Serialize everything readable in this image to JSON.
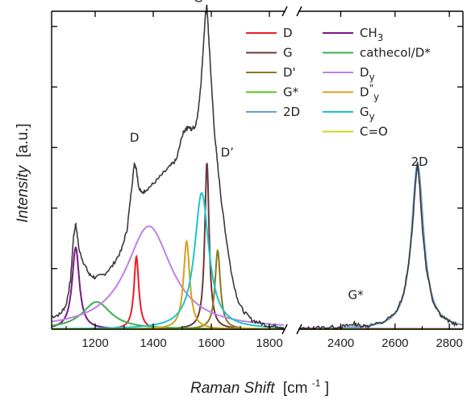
{
  "chart_data": {
    "type": "line",
    "xlabel": {
      "main": "Raman Shift",
      "unit_open": "[cm",
      "unit_sup": "-1",
      "unit_close": "]"
    },
    "ylabel": {
      "main": "Intensity",
      "unit": "[a.u.]"
    },
    "x_break": [
      1850,
      2250
    ],
    "xlim_left": [
      1050,
      1850
    ],
    "xlim_right": [
      2250,
      2850
    ],
    "ylim": [
      0,
      1.05
    ],
    "xticks_left": [
      1200,
      1400,
      1600,
      1800
    ],
    "xticks_right": [
      2400,
      2600,
      2800
    ],
    "yticks": [
      0.2,
      0.4,
      0.6,
      0.8,
      1.0
    ],
    "show_y_tick_labels": false,
    "grid": false,
    "legend_position": "top-right",
    "annotations": [
      {
        "text": "G",
        "x": 1555,
        "y": 1.08
      },
      {
        "text": "D",
        "x": 1335,
        "y": 0.62
      },
      {
        "text": "D’",
        "x": 1655,
        "y": 0.57
      },
      {
        "text": "2D",
        "x": 2690,
        "y": 0.54
      },
      {
        "text": "G*",
        "x": 2455,
        "y": 0.1
      }
    ],
    "series": [
      {
        "name": "D",
        "label_main": "D",
        "label_sub": "",
        "label_sup": "",
        "color": "#ee1c25",
        "type": "lorentz",
        "center": 1342,
        "height": 0.24,
        "width": 10
      },
      {
        "name": "G",
        "label_main": "G",
        "label_sub": "",
        "label_sup": "",
        "color": "#6b3a3a",
        "type": "lorentz",
        "center": 1585,
        "height": 0.55,
        "width": 9
      },
      {
        "name": "D'",
        "label_main": "D'",
        "label_sub": "",
        "label_sup": "",
        "color": "#8b7a1a",
        "type": "lorentz",
        "center": 1622,
        "height": 0.26,
        "width": 11
      },
      {
        "name": "G*",
        "label_main": "G*",
        "label_sub": "",
        "label_sup": "",
        "color": "#5bbf21",
        "type": "lorentz",
        "center": 2450,
        "height": 0.006,
        "width": 25
      },
      {
        "name": "2D",
        "label_main": "2D",
        "label_sub": "",
        "label_sup": "",
        "color": "#6a9fd0",
        "type": "lorentz",
        "center": 2683,
        "height": 0.545,
        "width": 27
      },
      {
        "name": "CH3",
        "label_main": "CH",
        "label_sub": "3",
        "label_sup": "",
        "color": "#7a1585",
        "type": "lorentz",
        "center": 1133,
        "height": 0.27,
        "width": 15
      },
      {
        "name": "cathecol/D*",
        "label_main": "cathecol/D*",
        "label_sub": "",
        "label_sup": "",
        "color": "#3bb04a",
        "type": "lorentz",
        "center": 1205,
        "height": 0.09,
        "width": 60
      },
      {
        "name": "Dy",
        "label_main": "D",
        "label_sub": "y",
        "label_sup": "",
        "color": "#c37fe6",
        "type": "lorentz",
        "center": 1385,
        "height": 0.34,
        "width": 95
      },
      {
        "name": "D''y",
        "label_main": "D",
        "label_sub": "y",
        "label_sup": "\"",
        "color": "#d3a21c",
        "type": "lorentz",
        "center": 1515,
        "height": 0.29,
        "width": 13
      },
      {
        "name": "Gy",
        "label_main": "G",
        "label_sub": "y",
        "label_sup": "",
        "color": "#18c6cc",
        "type": "lorentz",
        "center": 1567,
        "height": 0.45,
        "width": 30
      },
      {
        "name": "C=O",
        "label_main": "C=O",
        "label_sub": "",
        "label_sup": "",
        "color": "#d9d21a",
        "type": "lorentz",
        "center": 1720,
        "height": 0.004,
        "width": 30
      }
    ],
    "measured": {
      "color": "#3a3a3a",
      "x_left": [
        1050,
        1080,
        1100,
        1115,
        1125,
        1133,
        1145,
        1160,
        1180,
        1200,
        1230,
        1260,
        1290,
        1310,
        1325,
        1335,
        1342,
        1350,
        1360,
        1375,
        1400,
        1430,
        1460,
        1480,
        1500,
        1510,
        1520,
        1530,
        1545,
        1555,
        1565,
        1575,
        1580,
        1585,
        1590,
        1600,
        1610,
        1620,
        1635,
        1650,
        1670,
        1690,
        1710,
        1740,
        1770,
        1800,
        1830,
        1850
      ],
      "y_left": [
        0.04,
        0.05,
        0.08,
        0.16,
        0.3,
        0.35,
        0.26,
        0.22,
        0.18,
        0.17,
        0.18,
        0.21,
        0.26,
        0.33,
        0.46,
        0.55,
        0.53,
        0.47,
        0.45,
        0.46,
        0.48,
        0.51,
        0.54,
        0.56,
        0.64,
        0.66,
        0.67,
        0.66,
        0.67,
        0.72,
        0.82,
        0.97,
        1.04,
        1.07,
        0.98,
        0.82,
        0.66,
        0.56,
        0.42,
        0.31,
        0.18,
        0.1,
        0.06,
        0.03,
        0.02,
        0.01,
        0.01,
        0.005
      ],
      "x_right": [
        2250,
        2300,
        2350,
        2400,
        2430,
        2450,
        2470,
        2500,
        2550,
        2600,
        2630,
        2650,
        2665,
        2675,
        2683,
        2690,
        2700,
        2715,
        2740,
        2770,
        2800,
        2830
      ],
      "y_right": [
        0.0,
        0.004,
        0.006,
        0.008,
        0.012,
        0.018,
        0.012,
        0.012,
        0.02,
        0.05,
        0.11,
        0.21,
        0.35,
        0.48,
        0.55,
        0.48,
        0.34,
        0.2,
        0.09,
        0.045,
        0.025,
        0.015
      ]
    }
  }
}
